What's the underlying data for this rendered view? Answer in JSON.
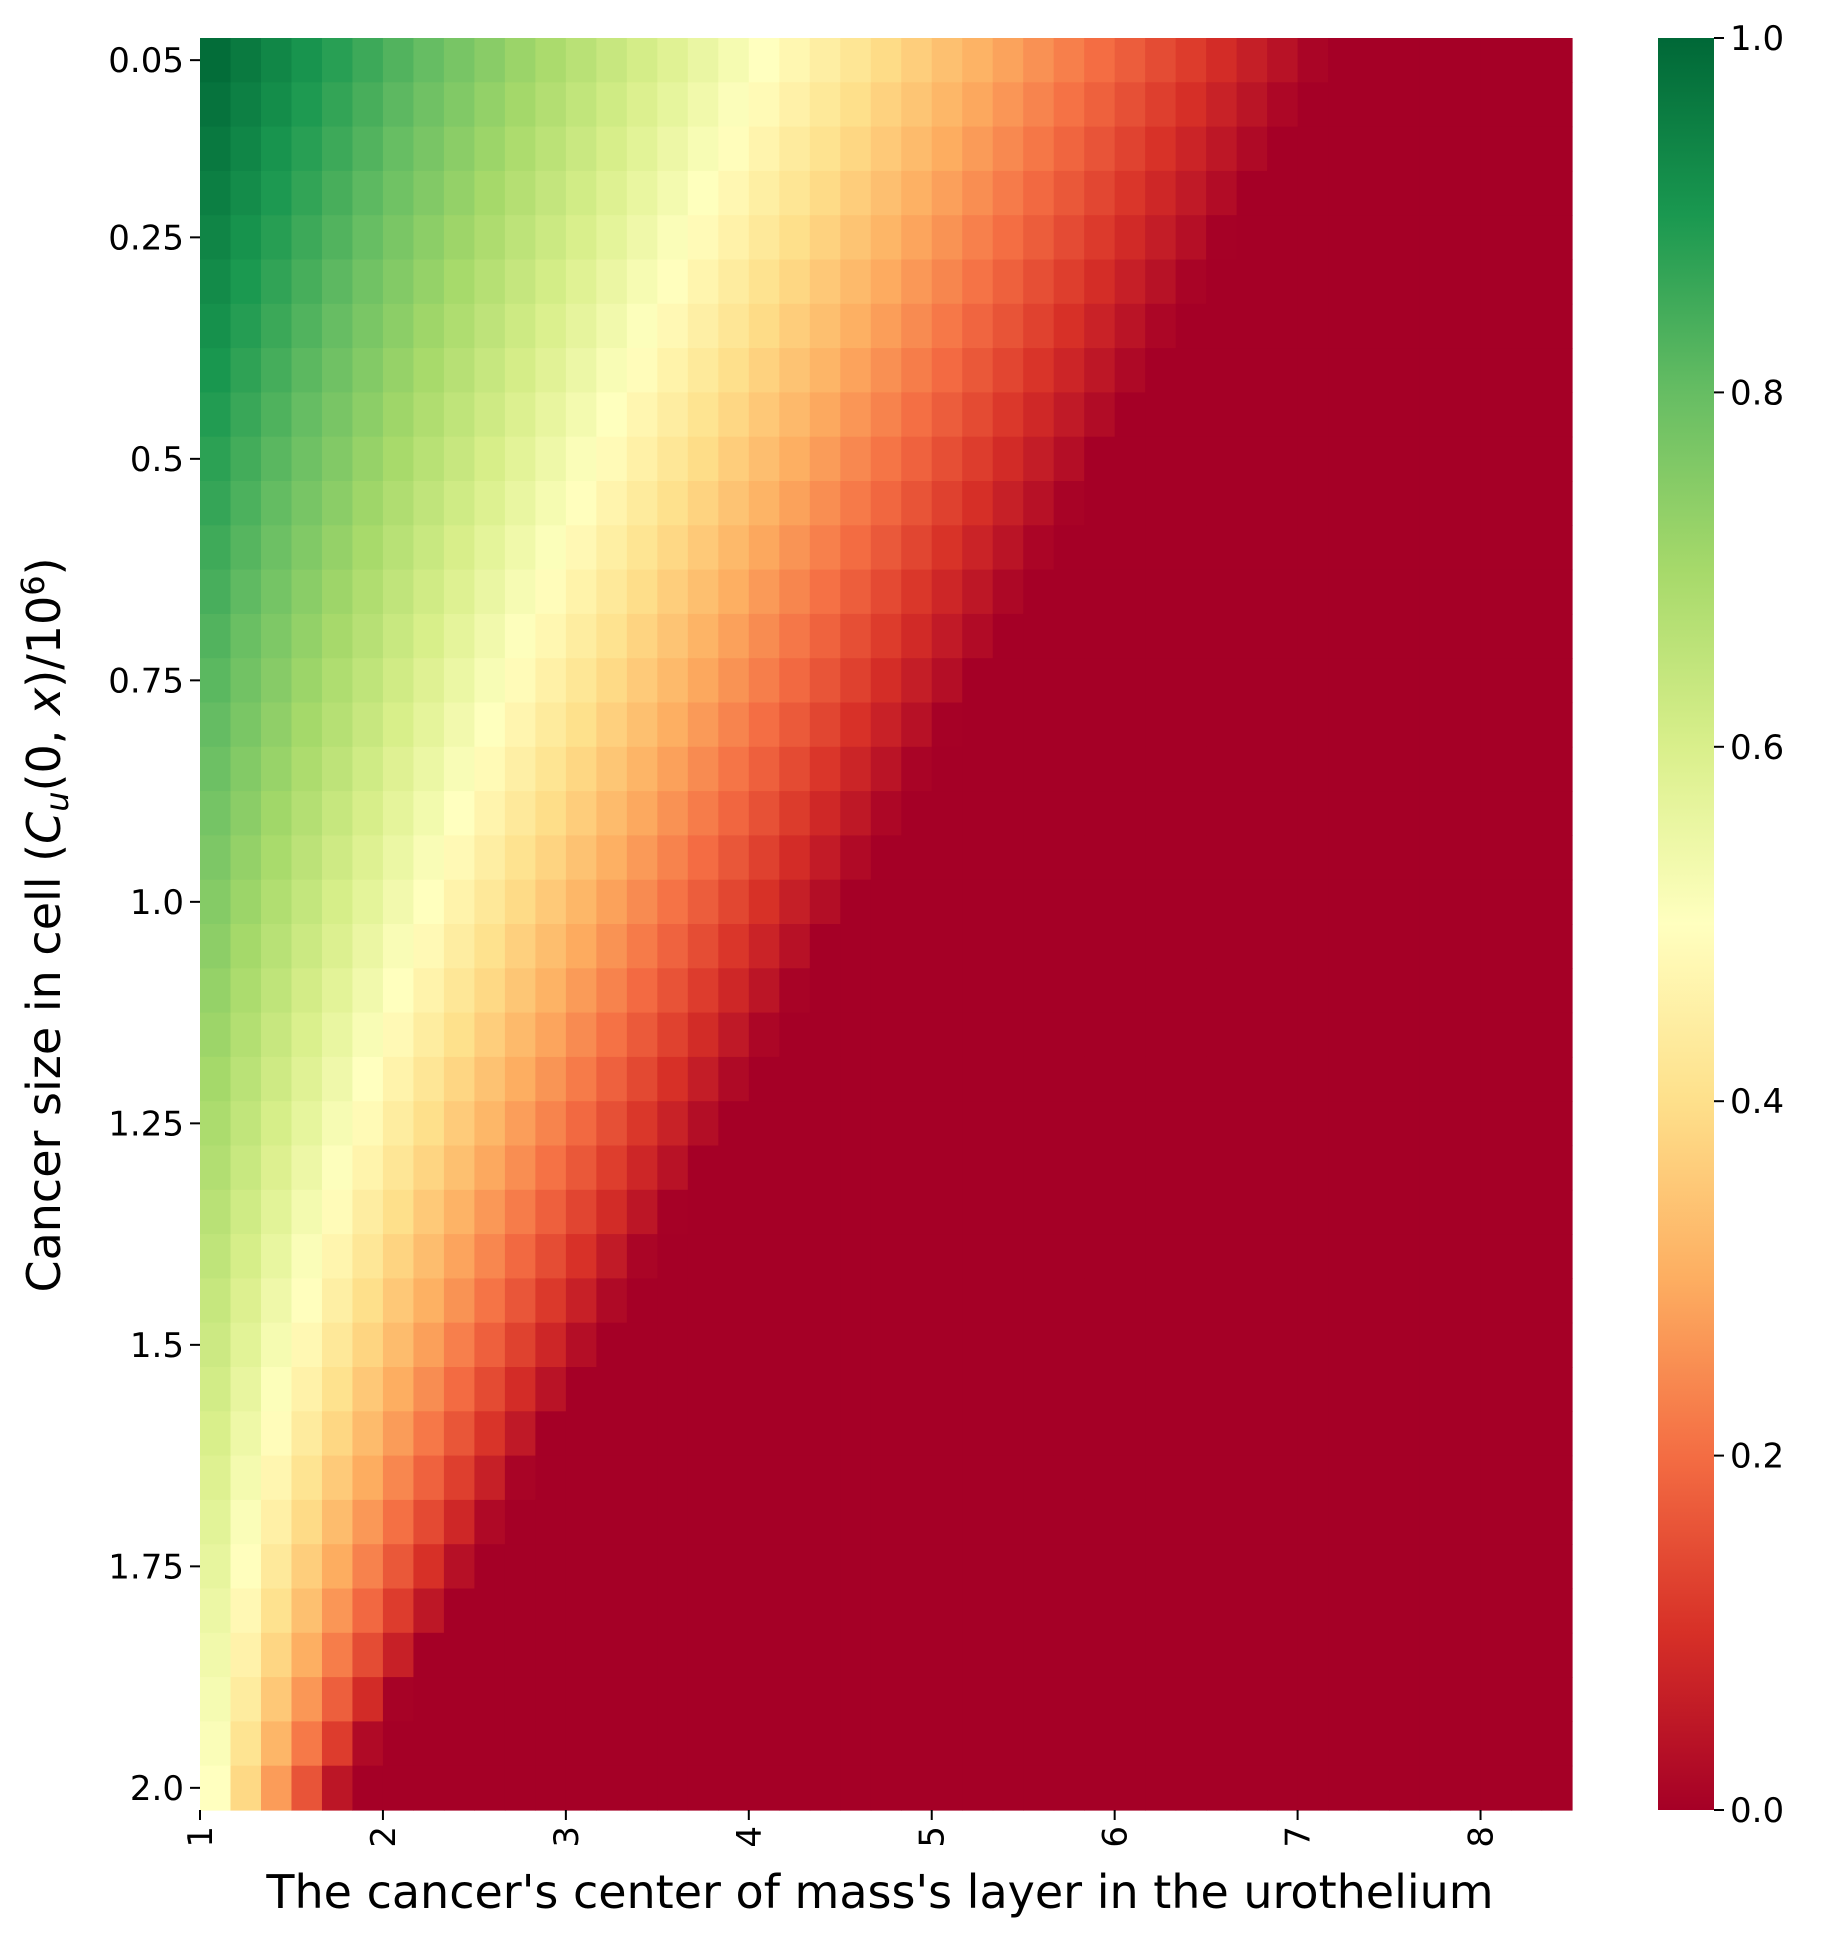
{
  "chart_data": {
    "type": "heatmap",
    "title": "",
    "xlabel": "The cancer's center of mass's layer in the urothelium",
    "ylabel_parts": {
      "pre": "Cancer size in cell (",
      "c": "C",
      "sub": "u",
      "mid1": "(0, ",
      "x": "x",
      "mid2": ")/10",
      "sup": "6",
      "post": ")"
    },
    "x_range": [
      1,
      8.5
    ],
    "y_range": [
      0.05,
      2.0
    ],
    "n_cols": 45,
    "n_rows": 40,
    "x_ticks": [
      {
        "value": 1,
        "label": "1"
      },
      {
        "value": 2,
        "label": "2"
      },
      {
        "value": 3,
        "label": "3"
      },
      {
        "value": 4,
        "label": "4"
      },
      {
        "value": 5,
        "label": "5"
      },
      {
        "value": 6,
        "label": "6"
      },
      {
        "value": 7,
        "label": "7"
      },
      {
        "value": 8,
        "label": "8"
      }
    ],
    "y_ticks": [
      {
        "value": 0.05,
        "label": "0.05"
      },
      {
        "value": 0.25,
        "label": "0.25"
      },
      {
        "value": 0.5,
        "label": "0.5"
      },
      {
        "value": 0.75,
        "label": "0.75"
      },
      {
        "value": 1.0,
        "label": "1.0"
      },
      {
        "value": 1.25,
        "label": "1.25"
      },
      {
        "value": 1.5,
        "label": "1.5"
      },
      {
        "value": 1.75,
        "label": "1.75"
      },
      {
        "value": 2.0,
        "label": "2.0"
      }
    ],
    "colorbar": {
      "colormap": "RdYlGn",
      "vmin": 0.0,
      "vmax": 1.0,
      "ticks": [
        {
          "value": 0.0,
          "label": "0.0"
        },
        {
          "value": 0.2,
          "label": "0.2"
        },
        {
          "value": 0.4,
          "label": "0.4"
        },
        {
          "value": 0.6,
          "label": "0.6"
        },
        {
          "value": 0.8,
          "label": "0.8"
        },
        {
          "value": 1.0,
          "label": "1.0"
        }
      ],
      "stops": [
        "#a50026",
        "#d73027",
        "#f46d43",
        "#fdae61",
        "#fee08b",
        "#ffffbf",
        "#d9ef8b",
        "#a6d96a",
        "#66bd63",
        "#1a9850",
        "#006837"
      ]
    },
    "cutoff_x_by_size": [
      [
        0.05,
        7.2
      ],
      [
        2.0,
        1.75
      ]
    ],
    "value_at_origin_by_size": [
      [
        0.05,
        0.99
      ],
      [
        2.0,
        0.5
      ]
    ]
  }
}
